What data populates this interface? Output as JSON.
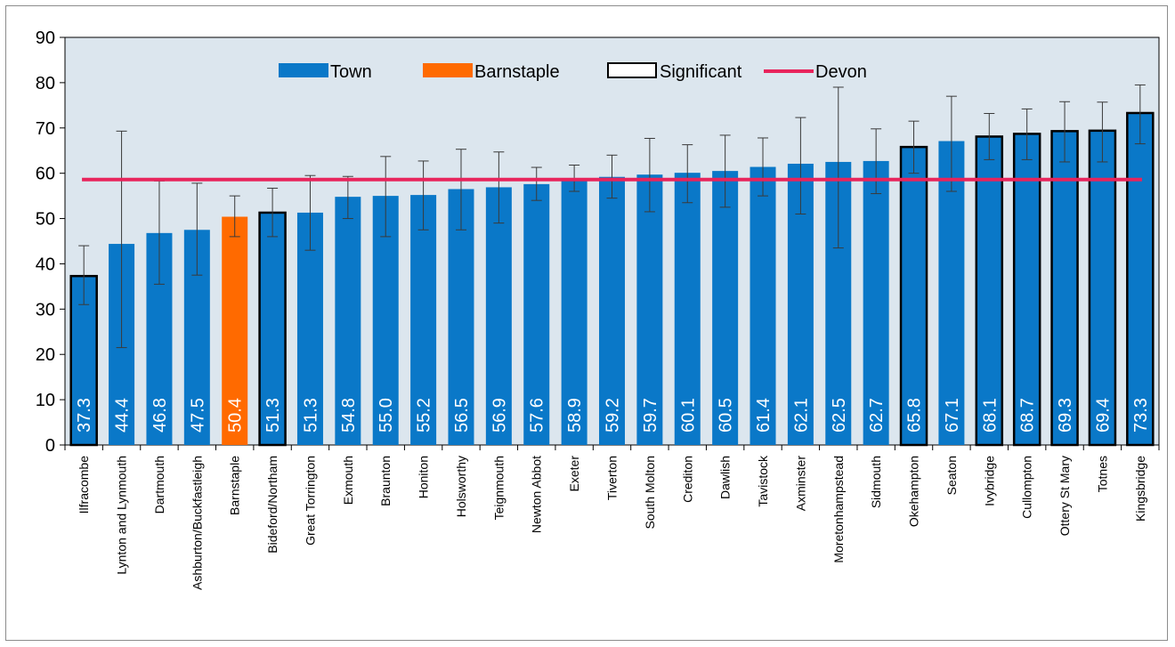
{
  "chart_data": {
    "type": "bar",
    "title": "",
    "xlabel": "",
    "ylabel": "",
    "ylim": [
      0,
      90
    ],
    "yticks": [
      0,
      10,
      20,
      30,
      40,
      50,
      60,
      70,
      80,
      90
    ],
    "grid": false,
    "legend_position": "top",
    "legend": [
      {
        "label": "Town",
        "kind": "bar",
        "color": "#0a78c8"
      },
      {
        "label": "Barnstaple",
        "kind": "bar",
        "color": "#ff6a00"
      },
      {
        "label": "Significant",
        "kind": "outline",
        "color": "#000000"
      },
      {
        "label": "Devon",
        "kind": "line",
        "color": "#e8245c"
      }
    ],
    "colors": {
      "town": "#0a78c8",
      "barnstaple": "#ff6a00",
      "devon": "#e8245c",
      "plot_bg": "#dce6ee"
    },
    "devon_value": 58.6,
    "categories": [
      "Ilfracombe",
      "Lynton and Lynmouth",
      "Dartmouth",
      "Ashburton/Buckfastleigh",
      "Barnstaple",
      "Bideford/Northam",
      "Great Torrington",
      "Exmouth",
      "Braunton",
      "Honiton",
      "Holsworthy",
      "Teignmouth",
      "Newton Abbot",
      "Exeter",
      "Tiverton",
      "South Molton",
      "Crediton",
      "Dawlish",
      "Tavistock",
      "Axminster",
      "Moretonhampstead",
      "Sidmouth",
      "Okehampton",
      "Seaton",
      "Ivybridge",
      "Cullompton",
      "Ottery St Mary",
      "Totnes",
      "Kingsbridge"
    ],
    "values": [
      37.3,
      44.4,
      46.8,
      47.5,
      50.4,
      51.3,
      51.3,
      54.8,
      55.0,
      55.2,
      56.5,
      56.9,
      57.6,
      58.9,
      59.2,
      59.7,
      60.1,
      60.5,
      61.4,
      62.1,
      62.5,
      62.7,
      65.8,
      67.1,
      68.1,
      68.7,
      69.3,
      69.4,
      73.3
    ],
    "value_labels": [
      "37.3",
      "44.4",
      "46.8",
      "47.5",
      "50.4",
      "51.3",
      "51.3",
      "54.8",
      "55.0",
      "55.2",
      "56.5",
      "56.9",
      "57.6",
      "58.9",
      "59.2",
      "59.7",
      "60.1",
      "60.5",
      "61.4",
      "62.1",
      "62.5",
      "62.7",
      "65.8",
      "67.1",
      "68.1",
      "68.7",
      "69.3",
      "69.4",
      "73.3"
    ],
    "error_low": [
      31.0,
      21.5,
      35.5,
      37.5,
      46.0,
      46.0,
      43.0,
      50.0,
      46.0,
      47.5,
      47.5,
      49.0,
      54.0,
      56.0,
      54.5,
      51.5,
      53.5,
      52.5,
      55.0,
      51.0,
      43.5,
      55.5,
      60.0,
      56.0,
      63.0,
      63.0,
      62.5,
      62.5,
      66.5
    ],
    "error_high": [
      44.0,
      69.3,
      58.3,
      57.8,
      55.0,
      56.7,
      59.5,
      59.3,
      63.7,
      62.7,
      65.3,
      64.7,
      61.3,
      61.8,
      64.0,
      67.7,
      66.3,
      68.4,
      67.8,
      72.3,
      79.0,
      69.8,
      71.5,
      77.0,
      73.2,
      74.2,
      75.8,
      75.7,
      79.5
    ],
    "significant": [
      true,
      false,
      false,
      false,
      false,
      true,
      false,
      false,
      false,
      false,
      false,
      false,
      false,
      false,
      false,
      false,
      false,
      false,
      false,
      false,
      false,
      false,
      true,
      false,
      true,
      true,
      true,
      true,
      true
    ],
    "highlight": "Barnstaple"
  }
}
